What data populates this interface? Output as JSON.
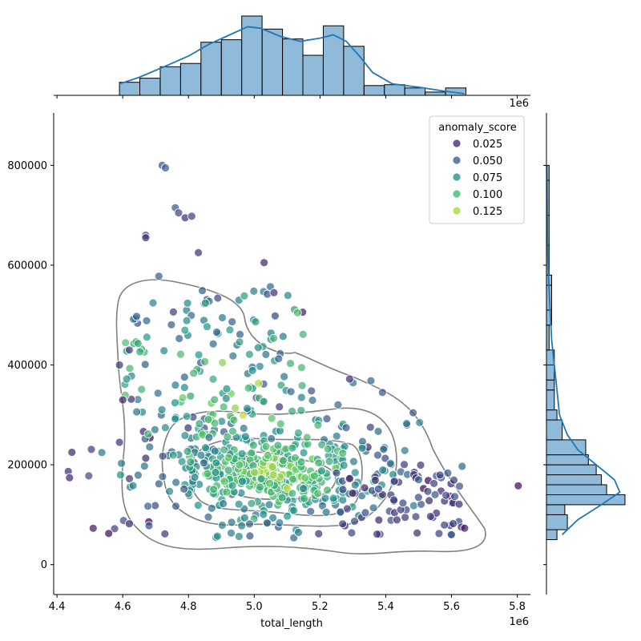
{
  "chart_data": {
    "type": "scatter",
    "title": "",
    "xlabel": "total_length",
    "ylabel": "",
    "x_offset_label": "1e6",
    "top_offset_label": "1e6",
    "xlim": [
      4.39,
      5.84
    ],
    "ylim": [
      -60000,
      905000
    ],
    "xticks": [
      4.4,
      4.6,
      4.8,
      5.0,
      5.2,
      5.4,
      5.6,
      5.8
    ],
    "xtick_labels": [
      "4.4",
      "4.6",
      "4.8",
      "5.0",
      "5.2",
      "5.4",
      "5.6",
      "5.8"
    ],
    "yticks": [
      0,
      200000,
      400000,
      600000,
      800000
    ],
    "ytick_labels": [
      "0",
      "200000",
      "400000",
      "600000",
      "800000"
    ],
    "legend": {
      "title": "anomaly_score",
      "placement": "top-right",
      "entries": [
        {
          "label": "0.025",
          "color": "#472c7a"
        },
        {
          "label": "0.050",
          "color": "#33638d"
        },
        {
          "label": "0.075",
          "color": "#21918c"
        },
        {
          "label": "0.100",
          "color": "#3bbb75"
        },
        {
          "label": "0.125",
          "color": "#aadc32"
        }
      ]
    },
    "colormap_stops": [
      "#440154",
      "#3b528b",
      "#21918c",
      "#5ec962",
      "#fde725"
    ],
    "score_range": [
      0.005,
      0.15
    ],
    "points_seed": 7,
    "kde_contour_levels": 4,
    "marginal_x": {
      "bin_edges": [
        4.59,
        4.652,
        4.714,
        4.776,
        4.838,
        4.9,
        4.962,
        5.024,
        5.086,
        5.148,
        5.21,
        5.272,
        5.334,
        5.396,
        5.458,
        5.52,
        5.582,
        5.644
      ],
      "counts": [
        16,
        21,
        35,
        39,
        65,
        68,
        97,
        81,
        69,
        49,
        85,
        60,
        12,
        13,
        9,
        4,
        9
      ],
      "kde": [
        [
          4.59,
          14
        ],
        [
          4.65,
          22
        ],
        [
          4.72,
          34
        ],
        [
          4.8,
          48
        ],
        [
          4.86,
          62
        ],
        [
          4.92,
          73
        ],
        [
          4.98,
          84
        ],
        [
          5.02,
          82
        ],
        [
          5.08,
          72
        ],
        [
          5.14,
          66
        ],
        [
          5.2,
          70
        ],
        [
          5.24,
          74
        ],
        [
          5.28,
          66
        ],
        [
          5.32,
          48
        ],
        [
          5.36,
          28
        ],
        [
          5.42,
          14
        ],
        [
          5.5,
          10
        ],
        [
          5.58,
          5
        ],
        [
          5.64,
          2
        ]
      ]
    },
    "marginal_y": {
      "bin_edges": [
        50000,
        70000,
        100000,
        120000,
        140000,
        160000,
        180000,
        200000,
        220000,
        250000,
        290000,
        310000,
        350000,
        370000,
        400000,
        430000,
        480000,
        510000,
        560000,
        580000,
        640000,
        700000,
        770000,
        800000
      ],
      "counts": [
        4,
        8,
        7,
        30,
        23,
        21,
        19,
        16,
        15,
        6,
        4,
        3,
        3,
        3,
        3,
        1,
        2,
        2,
        2,
        1,
        1,
        1,
        1
      ],
      "kde": [
        [
          60000,
          6
        ],
        [
          90000,
          12
        ],
        [
          120000,
          21
        ],
        [
          145000,
          28
        ],
        [
          170000,
          26
        ],
        [
          200000,
          19
        ],
        [
          230000,
          12
        ],
        [
          260000,
          8
        ],
        [
          300000,
          5
        ],
        [
          350000,
          4
        ],
        [
          400000,
          3
        ],
        [
          450000,
          2
        ],
        [
          500000,
          1.5
        ],
        [
          550000,
          1
        ],
        [
          600000,
          0.6
        ],
        [
          650000,
          0.4
        ],
        [
          700000,
          0.3
        ],
        [
          800000,
          0.1
        ]
      ]
    }
  }
}
